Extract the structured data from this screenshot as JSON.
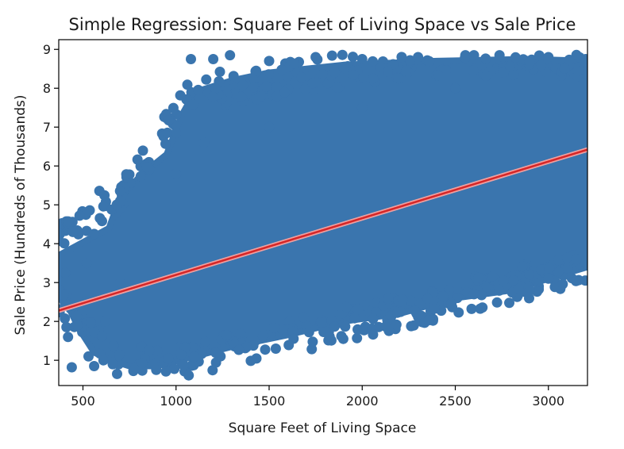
{
  "chart_data": {
    "type": "scatter",
    "title": "Simple Regression: Square Feet of Living Space vs Sale Price",
    "xlabel": "Square Feet of Living Space",
    "ylabel": "Sale Price (Hundreds of Thousands)",
    "xlim": [
      370,
      3210
    ],
    "ylim": [
      0.35,
      9.25
    ],
    "xticks": [
      500,
      1000,
      1500,
      2000,
      2500,
      3000
    ],
    "yticks": [
      1,
      2,
      3,
      4,
      5,
      6,
      7,
      8,
      9
    ],
    "grid": false,
    "legend": "none",
    "colors": {
      "points": "#3a75ae",
      "regression_line": "#d62728",
      "band": "#f0a0a0"
    },
    "regression_line": {
      "x": [
        370,
        3210
      ],
      "y": [
        2.28,
        6.42
      ]
    },
    "series": [
      {
        "values_note_free": true,
        "x": [
          440,
          1080,
          1200,
          1290,
          1500,
          1750,
          2000,
          2300,
          2600,
          3000,
          3200,
          405,
          480,
          520,
          560,
          420,
          470,
          530,
          610,
          560,
          620,
          660,
          700,
          700,
          1000,
          1150,
          1500,
          2000,
          2500,
          2600,
          2900,
          3000,
          3150,
          3200
        ],
        "y": [
          0.82,
          8.75,
          8.75,
          8.85,
          8.7,
          8.8,
          8.75,
          8.8,
          8.85,
          8.8,
          8.75,
          3.25,
          2.5,
          3.5,
          4.25,
          1.6,
          1.9,
          1.1,
          1.0,
          0.85,
          2.0,
          0.9,
          3.0,
          5.1,
          5.8,
          6.6,
          7.0,
          7.5,
          8.0,
          2.7,
          2.8,
          3.1,
          3.6,
          3.5
        ]
      }
    ]
  }
}
